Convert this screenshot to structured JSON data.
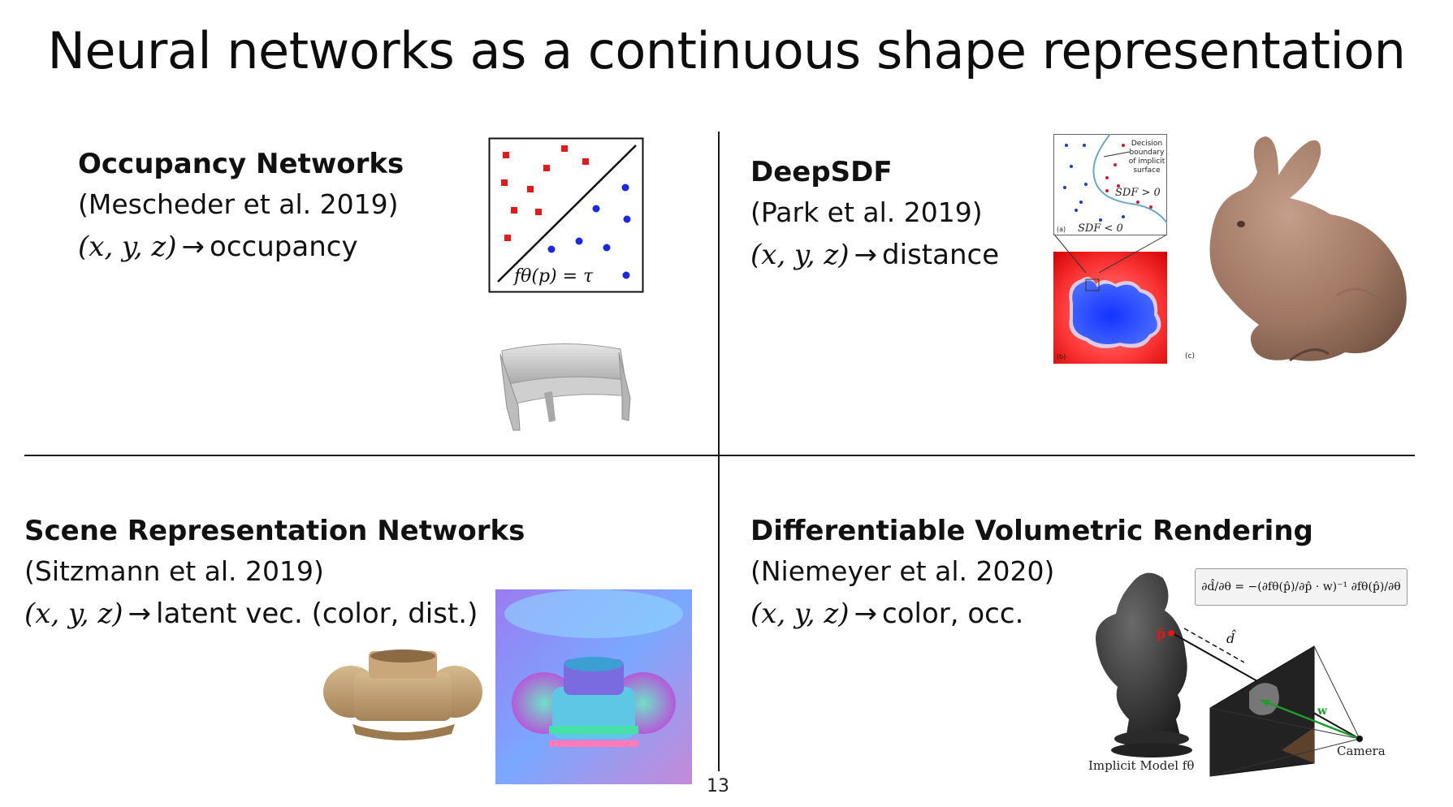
{
  "slide": {
    "title": "Neural networks as a continuous shape representation",
    "page_number": "13"
  },
  "quadrants": {
    "occupancy": {
      "title": "Occupancy Networks",
      "citation": "(Mescheder et al. 2019)",
      "map_input": "(x, y, z)",
      "arrow": "→",
      "map_output": "occupancy",
      "diagram_label": "fθ(p) = τ"
    },
    "deepsdf": {
      "title": "DeepSDF",
      "citation": "(Park et al. 2019)",
      "map_input": "(x, y, z)",
      "arrow": "→",
      "map_output": "distance",
      "legend_1": "Decision",
      "legend_2": "boundary",
      "legend_3": "of implicit",
      "legend_4": "surface",
      "sdf_pos": "SDF > 0",
      "sdf_neg": "SDF < 0",
      "panel_a": "(a)",
      "panel_b": "(b)",
      "panel_c": "(c)"
    },
    "srn": {
      "title": "Scene Representation Networks",
      "citation": "(Sitzmann et al. 2019)",
      "map_input": "(x, y, z)",
      "arrow": "→",
      "map_output": "latent vec. (color, dist.)"
    },
    "dvr": {
      "title": "Differentiable Volumetric Rendering",
      "citation": "(Niemeyer et al. 2020)",
      "map_input": "(x, y, z)",
      "arrow": "→",
      "map_output": "color, occ.",
      "formula": "∂d̂/∂θ = −(∂fθ(p̂)/∂p̂ · w)⁻¹ ∂fθ(p̂)/∂θ",
      "caption_model": "Implicit Model fθ",
      "caption_camera": "Camera",
      "label_p": "p̂",
      "label_d": "d̂",
      "label_w": "w"
    }
  }
}
